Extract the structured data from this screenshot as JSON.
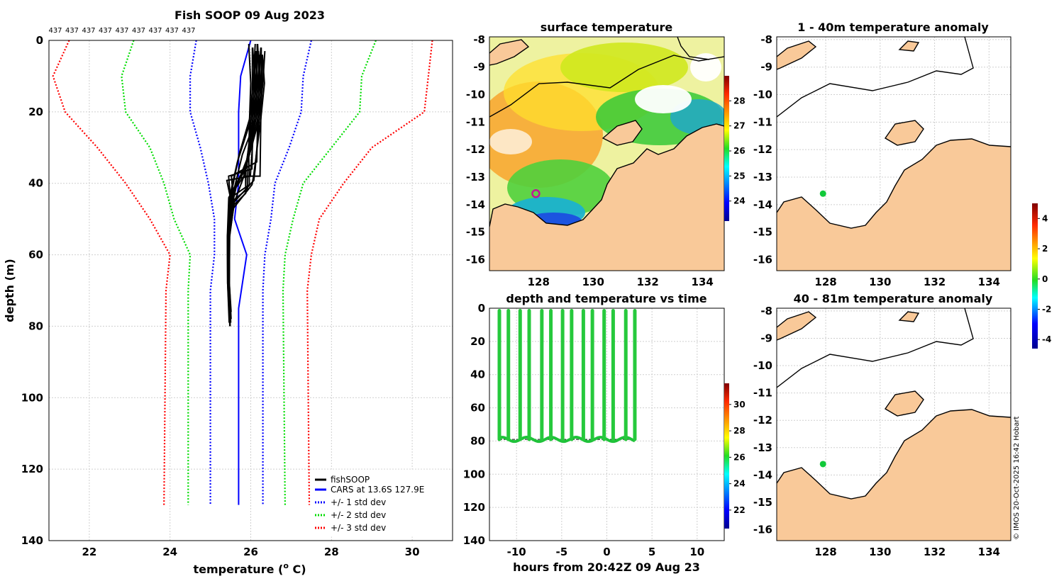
{
  "chart_data": [
    {
      "type": "line",
      "id": "profile",
      "title": "Fish SOOP 09 Aug 2023",
      "xlabel": "temperature (",
      "xlabel_sup": "o",
      "xlabel_end": " C)",
      "ylabel": "depth (m)",
      "xlim": [
        21,
        31
      ],
      "ylim": [
        0,
        140
      ],
      "xticks": [
        22,
        24,
        26,
        28,
        30
      ],
      "yticks": [
        0,
        20,
        40,
        60,
        80,
        100,
        120,
        140
      ],
      "top_labels": [
        "437",
        "437",
        "437",
        "437",
        "437",
        "437",
        "437",
        "437",
        "437"
      ],
      "series": [
        {
          "name": "fishSOOP",
          "color": "#000000",
          "style": "solid"
        },
        {
          "name": "CARS at 13.6S 127.9E",
          "color": "#0000ff",
          "style": "solid",
          "points": [
            [
              26.0,
              0
            ],
            [
              25.75,
              10
            ],
            [
              25.7,
              20
            ],
            [
              25.7,
              40
            ],
            [
              25.6,
              50
            ],
            [
              25.9,
              60
            ],
            [
              25.7,
              75
            ],
            [
              25.7,
              130
            ]
          ]
        },
        {
          "name": "+/- 1 std dev",
          "color": "#0000ff",
          "style": "dotted",
          "lower": [
            [
              24.65,
              0
            ],
            [
              24.5,
              10
            ],
            [
              24.5,
              20
            ],
            [
              24.75,
              30
            ],
            [
              24.95,
              40
            ],
            [
              25.1,
              50
            ],
            [
              25.1,
              60
            ],
            [
              25.0,
              70
            ],
            [
              25.0,
              130
            ]
          ],
          "upper": [
            [
              27.5,
              0
            ],
            [
              27.3,
              10
            ],
            [
              27.25,
              20
            ],
            [
              26.95,
              30
            ],
            [
              26.6,
              40
            ],
            [
              26.5,
              50
            ],
            [
              26.35,
              60
            ],
            [
              26.3,
              70
            ],
            [
              26.3,
              130
            ]
          ]
        },
        {
          "name": "+/- 2 std dev",
          "color": "#00dd00",
          "style": "dotted",
          "lower": [
            [
              23.1,
              0
            ],
            [
              22.8,
              10
            ],
            [
              22.9,
              20
            ],
            [
              23.5,
              30
            ],
            [
              23.85,
              40
            ],
            [
              24.1,
              50
            ],
            [
              24.5,
              60
            ],
            [
              24.45,
              70
            ],
            [
              24.45,
              130
            ]
          ],
          "upper": [
            [
              29.1,
              0
            ],
            [
              28.75,
              10
            ],
            [
              28.7,
              20
            ],
            [
              28.0,
              30
            ],
            [
              27.3,
              40
            ],
            [
              27.05,
              50
            ],
            [
              26.85,
              60
            ],
            [
              26.8,
              70
            ],
            [
              26.85,
              130
            ]
          ]
        },
        {
          "name": "+/- 3 std dev",
          "color": "#ff0000",
          "style": "dotted",
          "lower": [
            [
              21.5,
              0
            ],
            [
              21.1,
              10
            ],
            [
              21.4,
              20
            ],
            [
              22.2,
              30
            ],
            [
              22.9,
              40
            ],
            [
              23.5,
              50
            ],
            [
              24.0,
              60
            ],
            [
              23.9,
              70
            ],
            [
              23.85,
              130
            ]
          ],
          "upper": [
            [
              30.5,
              0
            ],
            [
              30.4,
              10
            ],
            [
              30.3,
              20
            ],
            [
              29.0,
              30
            ],
            [
              28.3,
              40
            ],
            [
              27.7,
              50
            ],
            [
              27.5,
              60
            ],
            [
              27.4,
              70
            ],
            [
              27.45,
              130
            ]
          ]
        }
      ]
    },
    {
      "type": "heatmap",
      "id": "sst",
      "title": "surface temperature",
      "xticks": [
        128,
        130,
        132,
        134
      ],
      "yticks": [
        -8,
        -9,
        -10,
        -11,
        -12,
        -13,
        -14,
        -15,
        -16
      ],
      "colorbar_ticks": [
        24,
        25,
        26,
        27,
        28
      ],
      "colorbar_range": [
        23.2,
        29.0
      ],
      "marker": {
        "lon": 127.9,
        "lat": -13.6
      }
    },
    {
      "type": "scatter",
      "id": "depth_time",
      "title": "depth and temperature vs time",
      "xlabel": "hours from 20:42Z 09 Aug 23",
      "xlim": [
        -13,
        13
      ],
      "ylim": [
        0,
        140
      ],
      "xticks": [
        -10,
        -5,
        0,
        5,
        10
      ],
      "yticks": [
        0,
        20,
        40,
        60,
        80,
        100,
        120,
        140
      ],
      "profile_hours": [
        -11.9,
        -9.6,
        -7.2,
        -4.9,
        -2.6,
        -0.3,
        2.1
      ],
      "dive_depth": 79,
      "colorbar_ticks": [
        22,
        24,
        26,
        28,
        30
      ],
      "colorbar_range": [
        20.6,
        31.6
      ]
    },
    {
      "type": "heatmap",
      "id": "anom1",
      "title": "1 - 40m temperature anomaly",
      "xticks": [
        128,
        130,
        132,
        134
      ],
      "yticks": [
        -8,
        -9,
        -10,
        -11,
        -12,
        -13,
        -14,
        -15,
        -16
      ],
      "marker": {
        "lon": 127.9,
        "lat": -13.6
      }
    },
    {
      "type": "heatmap",
      "id": "anom2",
      "title": "40 - 81m temperature anomaly",
      "xticks": [
        128,
        130,
        132,
        134
      ],
      "yticks": [
        -8,
        -9,
        -10,
        -11,
        -12,
        -13,
        -14,
        -15,
        -16
      ],
      "marker": {
        "lon": 127.9,
        "lat": -13.6
      },
      "colorbar_ticks": [
        -4,
        -2,
        0,
        2,
        4
      ],
      "colorbar_range": [
        -4.6,
        5.0
      ]
    }
  ],
  "colors": {
    "land": "#f9c999",
    "marker": "#11c93a",
    "sst_marker": "#c0169a"
  },
  "credit": "© IMOS 20-Oct-2025 16:42 Hobart"
}
